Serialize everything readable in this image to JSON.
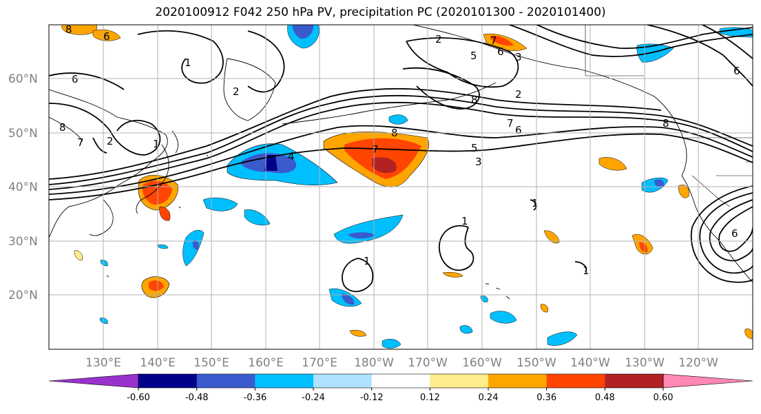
{
  "title": "2020100912 F042 250 hPa PV, precipitation PC (2020101300 - 2020101400)",
  "lat_labels": [
    "60°N",
    "50°N",
    "40°N",
    "30°N",
    "20°N"
  ],
  "lon_labels": [
    "130°E",
    "140°E",
    "150°E",
    "160°E",
    "170°E",
    "180°W",
    "170°W",
    "160°W",
    "150°W",
    "140°W",
    "130°W",
    "120°W"
  ],
  "colorbar": {
    "labels": [
      "-0.60",
      "-0.48",
      "-0.36",
      "-0.24",
      "-0.12",
      "0.12",
      "0.24",
      "0.36",
      "0.48",
      "0.60"
    ],
    "colors": [
      "#9932cc",
      "#00008b",
      "#3a5bcd",
      "#00bfff",
      "#b0e2ff",
      "#ffffff",
      "#ffec8b",
      "#ffa500",
      "#ff4500",
      "#b22222",
      "#ff88b5"
    ]
  },
  "contour_labels": [
    "6",
    "8",
    "7",
    "2",
    "1",
    "2",
    "8",
    "6",
    "7",
    "2",
    "5",
    "4",
    "3",
    "7",
    "6",
    "5",
    "3",
    "8",
    "7",
    "6",
    "8",
    "1",
    "1",
    "1",
    "1",
    "1",
    "6",
    "2",
    "8",
    "6"
  ],
  "colors": {
    "land_outline": "#000000",
    "grid": "#b0b0b0",
    "contour": "#000000"
  }
}
